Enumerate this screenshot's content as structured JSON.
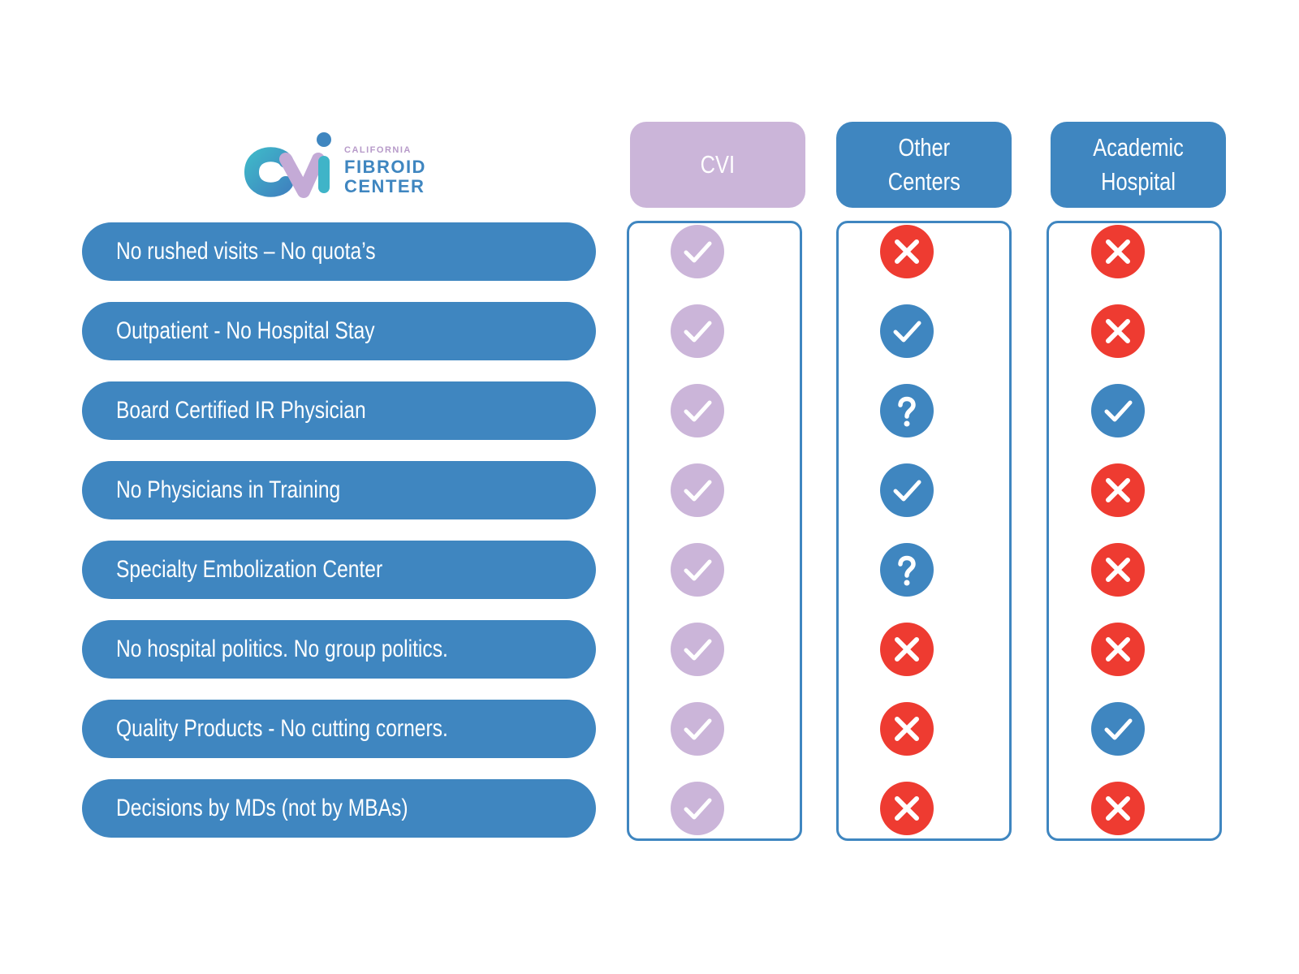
{
  "logo": {
    "small": "CALIFORNIA",
    "line1": "FIBROID",
    "line2": "CENTER",
    "colors": {
      "teal": "#3fb4c8",
      "lavender": "#c4aad6",
      "blue": "#3f86c0"
    }
  },
  "columns": [
    {
      "id": "cvi",
      "label": "CVI",
      "color": "#cbb5d9"
    },
    {
      "id": "other",
      "label": "Other Centers",
      "color": "#3f86c0"
    },
    {
      "id": "academic",
      "label": "Academic Hospital",
      "color": "#3f86c0"
    }
  ],
  "rows": [
    {
      "label": "No rushed visits – No quota’s",
      "values": [
        "check",
        "cross",
        "cross"
      ]
    },
    {
      "label": "Outpatient - No Hospital Stay",
      "values": [
        "check",
        "check",
        "cross"
      ]
    },
    {
      "label": "Board Certified IR Physician",
      "values": [
        "check",
        "question",
        "check"
      ]
    },
    {
      "label": "No Physicians in Training",
      "values": [
        "check",
        "check",
        "cross"
      ]
    },
    {
      "label": "Specialty Embolization Center",
      "values": [
        "check",
        "question",
        "cross"
      ]
    },
    {
      "label": "No hospital politics. No group politics.",
      "values": [
        "check",
        "cross",
        "cross"
      ]
    },
    {
      "label": "Quality Products - No cutting corners.",
      "values": [
        "check",
        "cross",
        "check"
      ]
    },
    {
      "label": "Decisions by MDs (not by MBAs)",
      "values": [
        "check",
        "cross",
        "cross"
      ]
    }
  ],
  "colors": {
    "pill": "#3f86c0",
    "check_cvi": "#cbb5d9",
    "check_other": "#3f86c0",
    "cross": "#ee3b31",
    "question": "#3f86c0"
  }
}
